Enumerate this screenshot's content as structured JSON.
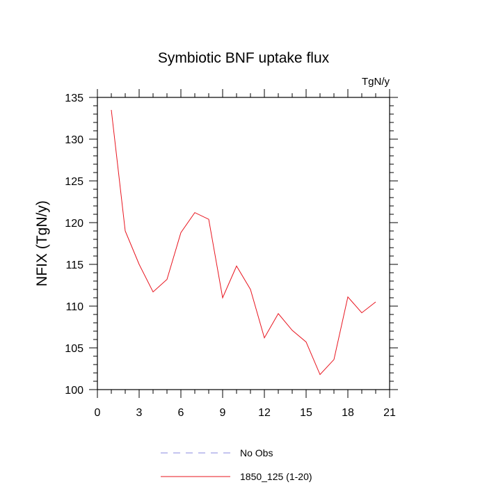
{
  "chart_data": {
    "type": "line",
    "title": "Symbiotic BNF uptake flux",
    "units_label": "TgN/y",
    "ylabel": "NFIX  (TgN/y)",
    "xlabel": "",
    "xlim": [
      0,
      21
    ],
    "ylim": [
      100,
      135
    ],
    "xticks": [
      0,
      3,
      6,
      9,
      12,
      15,
      18,
      21
    ],
    "yticks": [
      100,
      105,
      110,
      115,
      120,
      125,
      130,
      135
    ],
    "grid": false,
    "legend_position": "bottom",
    "series": [
      {
        "name": "1850_125 (1-20)",
        "color": "#e8141e",
        "style": "solid",
        "x": [
          1,
          2,
          3,
          4,
          5,
          6,
          7,
          8,
          9,
          10,
          11,
          12,
          13,
          14,
          15,
          16,
          17,
          18,
          19,
          20
        ],
        "values": [
          133.5,
          119.0,
          115.0,
          111.7,
          113.2,
          118.8,
          121.2,
          120.4,
          111.0,
          114.8,
          112.0,
          106.2,
          109.1,
          107.1,
          105.7,
          101.8,
          103.6,
          111.1,
          109.2,
          110.5
        ]
      }
    ],
    "legend": [
      {
        "label": "No Obs",
        "color": "#8a8ae0",
        "style": "dashed"
      },
      {
        "label": "1850_125 (1-20)",
        "color": "#e8141e",
        "style": "solid"
      }
    ]
  }
}
